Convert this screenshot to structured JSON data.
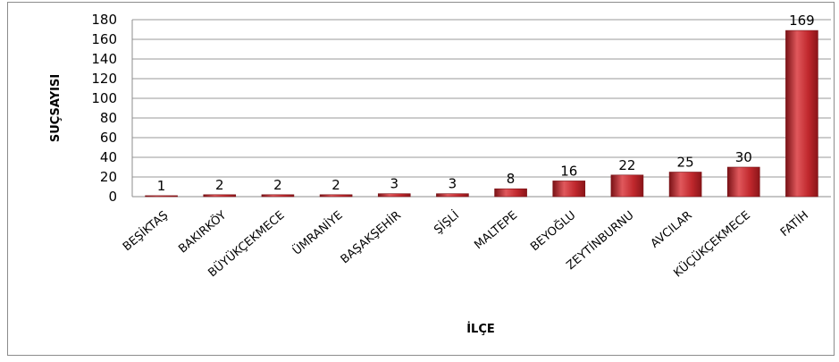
{
  "chart_data": {
    "type": "bar",
    "title": "",
    "xlabel": "İLÇE",
    "ylabel": "SUÇSAYISI",
    "categories": [
      "BEŞİKTAŞ",
      "BAKIRKÖY",
      "BÜYÜKÇEKMECE",
      "ÜMRANİYE",
      "BAŞAKŞEHİR",
      "ŞİŞLİ",
      "MALTEPE",
      "BEYOĞLU",
      "ZEYTİNBURNU",
      "AVCILAR",
      "KÜÇÜKÇEKMECE",
      "FATİH"
    ],
    "values": [
      1,
      2,
      2,
      2,
      3,
      3,
      8,
      16,
      22,
      25,
      30,
      169
    ],
    "ylim": [
      0,
      180
    ],
    "yticks": [
      0,
      20,
      40,
      60,
      80,
      100,
      120,
      140,
      160,
      180
    ],
    "grid": true,
    "legend": "none",
    "bar_color": "#c0282d",
    "bar_color_dark": "#7a1216"
  }
}
